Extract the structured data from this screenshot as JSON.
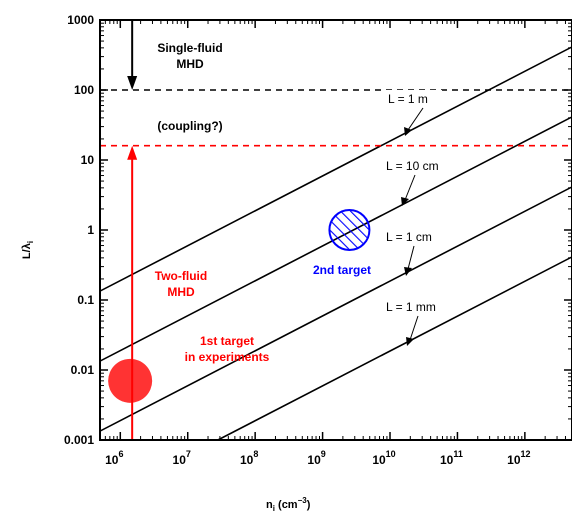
{
  "chart_data": {
    "type": "line",
    "x_scale": "log",
    "y_scale": "log",
    "xlim": [
      500000,
      5000000000000
    ],
    "ylim": [
      0.001,
      1000
    ],
    "xlabel_main": "n",
    "xlabel_sub": "i",
    "xlabel_unit": " (cm",
    "xlabel_exp": "−3",
    "xlabel_close": ")",
    "ylabel": "L/λ",
    "ylabel_sub": "i",
    "x_ticks": [
      {
        "base": "10",
        "exp": "6",
        "value": 1000000
      },
      {
        "base": "10",
        "exp": "7",
        "value": 10000000
      },
      {
        "base": "10",
        "exp": "8",
        "value": 100000000
      },
      {
        "base": "10",
        "exp": "9",
        "value": 1000000000
      },
      {
        "base": "10",
        "exp": "10",
        "value": 10000000000
      },
      {
        "base": "10",
        "exp": "11",
        "value": 100000000000
      },
      {
        "base": "10",
        "exp": "12",
        "value": 1000000000000
      }
    ],
    "y_ticks": [
      {
        "label": "1000",
        "value": 1000
      },
      {
        "label": "100",
        "value": 100
      },
      {
        "label": "10",
        "value": 10
      },
      {
        "label": "1",
        "value": 1
      },
      {
        "label": "0.1",
        "value": 0.1
      },
      {
        "label": "0.01",
        "value": 0.01
      },
      {
        "label": "0.001",
        "value": 0.001
      }
    ],
    "series": [
      {
        "name": "L = 1 m",
        "x": [
          500000,
          5000000000000
        ],
        "y": [
          0.134,
          413
        ]
      },
      {
        "name": "L = 10 cm",
        "x": [
          500000,
          5000000000000
        ],
        "y": [
          0.0134,
          41.3
        ]
      },
      {
        "name": "L = 1 cm",
        "x": [
          500000,
          5000000000000
        ],
        "y": [
          0.00134,
          4.13
        ]
      },
      {
        "name": "L = 1 mm",
        "x": [
          28000000,
          5000000000000
        ],
        "y": [
          0.001,
          0.413
        ]
      }
    ],
    "hlines": [
      {
        "y": 100,
        "color": "#000000",
        "style": "dashed"
      },
      {
        "y": 16,
        "color": "#ff0000",
        "style": "dashed"
      }
    ],
    "arrows": [
      {
        "x": 1500000,
        "y_from": 1000,
        "y_to": 100,
        "color": "#000000"
      },
      {
        "x": 1500000,
        "y_from": 0.001,
        "y_to": 16,
        "color": "#ff0000"
      }
    ],
    "markers": [
      {
        "x": 1400000,
        "y": 0.007,
        "color": "#ff3333",
        "style": "filled"
      },
      {
        "x": 2500000000,
        "y": 1.0,
        "color": "#0000ff",
        "style": "hatched"
      }
    ],
    "annotations": [
      {
        "text": "Single-fluid",
        "color": "#000000"
      },
      {
        "text": "MHD",
        "color": "#000000"
      },
      {
        "text": "(coupling?)",
        "color": "#000000"
      },
      {
        "text": "Two-fluid",
        "color": "#ff0000"
      },
      {
        "text": "MHD",
        "color": "#ff0000"
      },
      {
        "text": "1st target",
        "color": "#ff0000"
      },
      {
        "text": "in experiments",
        "color": "#ff0000"
      },
      {
        "text": "2nd target",
        "color": "#0000ff"
      }
    ]
  }
}
